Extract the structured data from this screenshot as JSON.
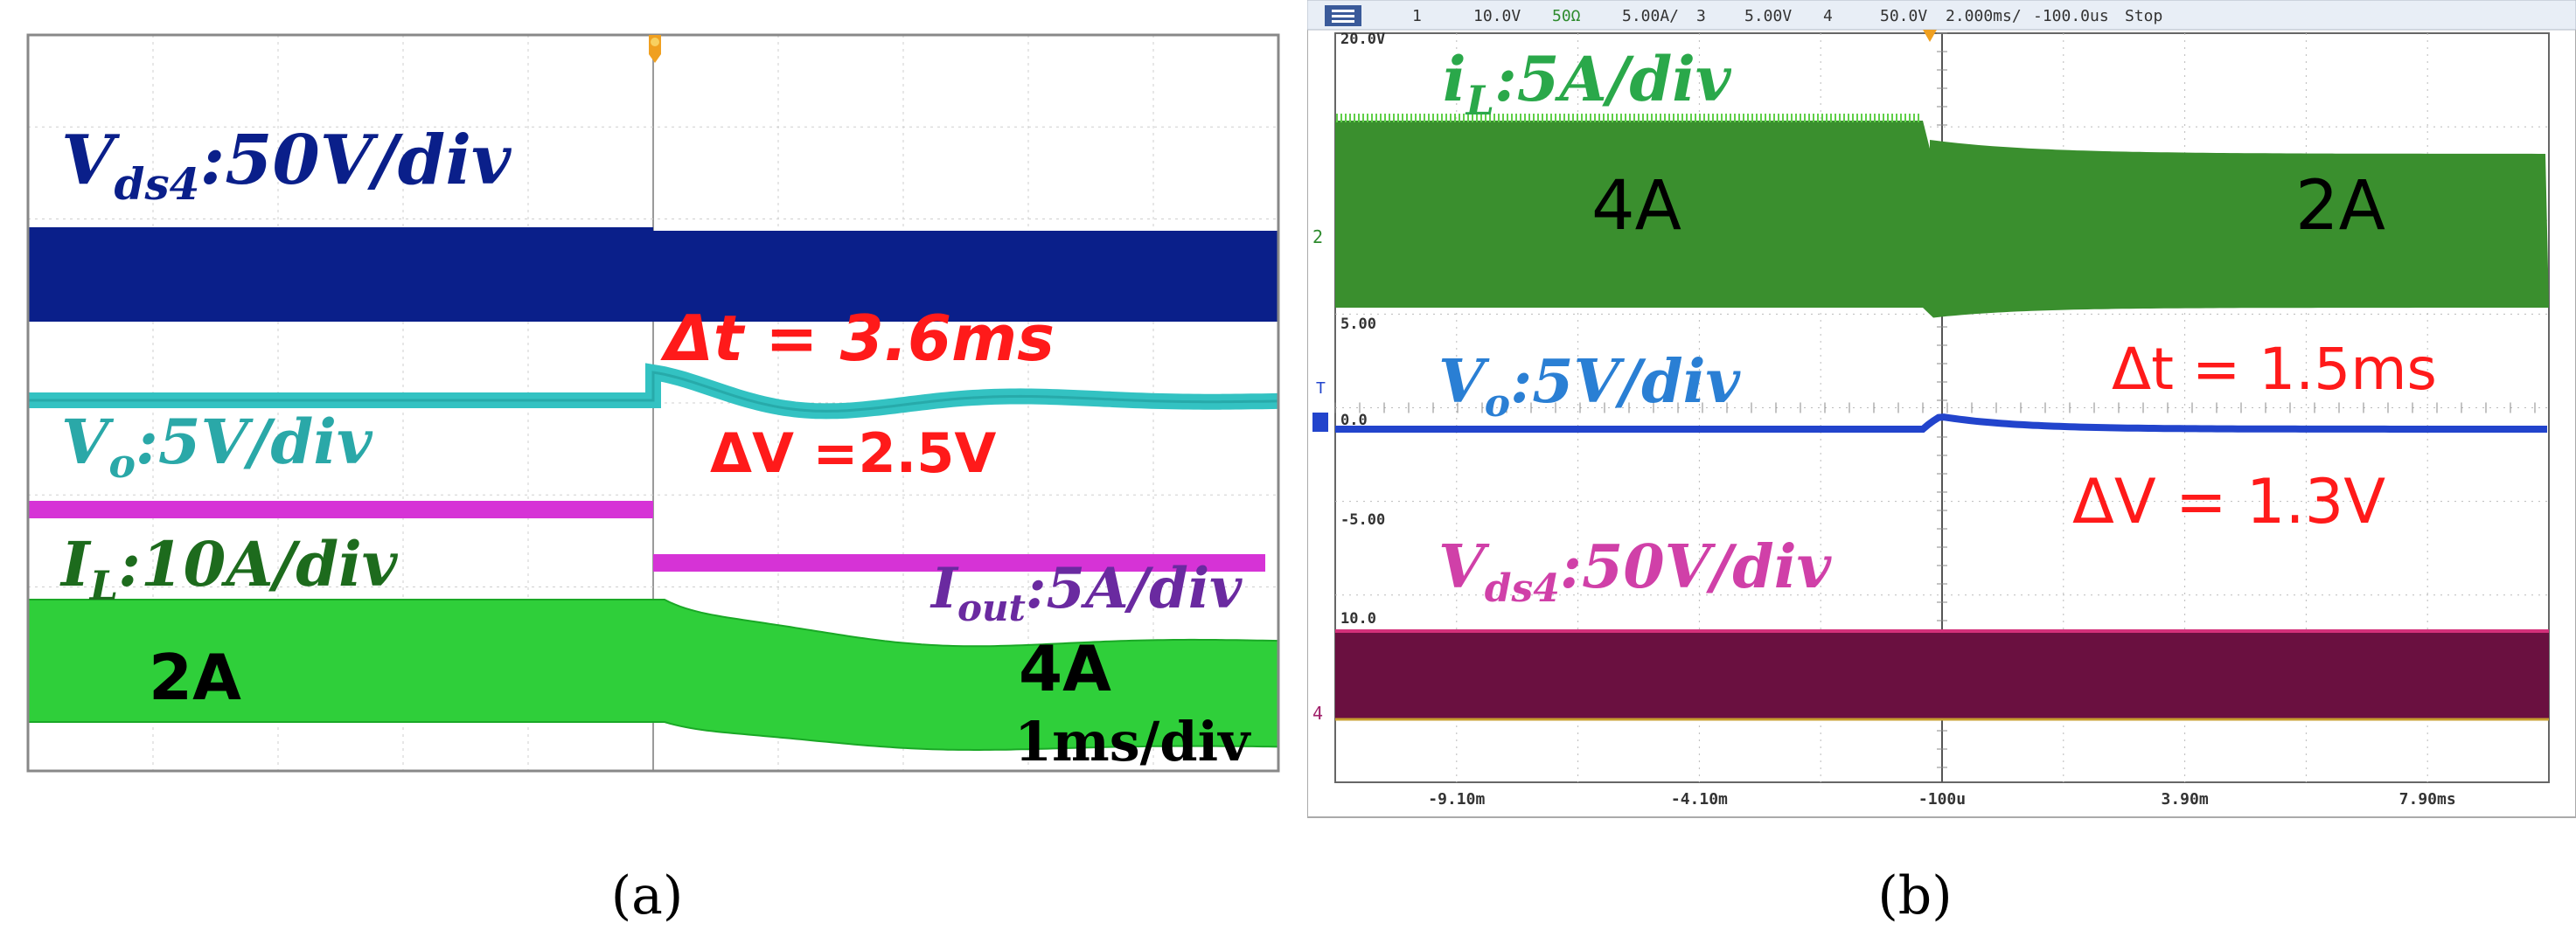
{
  "chart_data": [
    {
      "type": "line",
      "panel_label": "(a)",
      "time_div": "1ms/div",
      "step": {
        "before": "2A",
        "after": "4A"
      },
      "annotations": {
        "delta_t": "Δt = 3.6ms",
        "delta_v": "ΔV =2.5V"
      },
      "series": [
        {
          "name": "Vds4",
          "label_main": "V",
          "label_sub": "ds4",
          "label_scale": ":50V/div",
          "color": "#0a1f8a"
        },
        {
          "name": "Vo",
          "label_main": "V",
          "label_sub": "o",
          "label_scale": ":5V/div",
          "color": "#33c2c2",
          "label_color": "#2aa8a8"
        },
        {
          "name": "Iout",
          "label_main": "I",
          "label_sub": "out",
          "label_scale": ":5A/div",
          "color": "#d633d6",
          "label_color": "#6a2aa0"
        },
        {
          "name": "IL",
          "label_main": "I",
          "label_sub": "L",
          "label_scale": ":10A/div",
          "color": "#2fcf3a",
          "label_color": "#1d6b1d"
        }
      ]
    },
    {
      "type": "line",
      "panel_label": "(b)",
      "step": {
        "before": "4A",
        "after": "2A"
      },
      "annotations": {
        "delta_t": "Δt = 1.5ms",
        "delta_v": "ΔV = 1.3V"
      },
      "status_bar": [
        "1",
        "10.0V",
        "50Ω",
        "5.00A/",
        "3",
        "5.00V",
        "4",
        "50.0V",
        "2.000ms/",
        "-100.0us",
        "Stop"
      ],
      "x_ticks": [
        "-9.10m",
        "-4.10m",
        "-100u",
        "3.90m",
        "7.90ms"
      ],
      "y_tick_labels": [
        "20.0V",
        "5.00",
        "0.0",
        "-5.00",
        "10.0"
      ],
      "series": [
        {
          "name": "IL",
          "label_main": "i",
          "label_sub": "L",
          "label_scale": ":5A/div",
          "color": "#3a8f2e",
          "label_color": "#2aa84a"
        },
        {
          "name": "Vo",
          "label_main": "V",
          "label_sub": "o",
          "label_scale": ":5V/div",
          "color": "#2244cc",
          "label_color": "#2a7fd4"
        },
        {
          "name": "Vds4",
          "label_main": "V",
          "label_sub": "ds4",
          "label_scale": ":50V/div",
          "color": "#6a1040",
          "label_color": "#d040a8"
        }
      ]
    }
  ]
}
